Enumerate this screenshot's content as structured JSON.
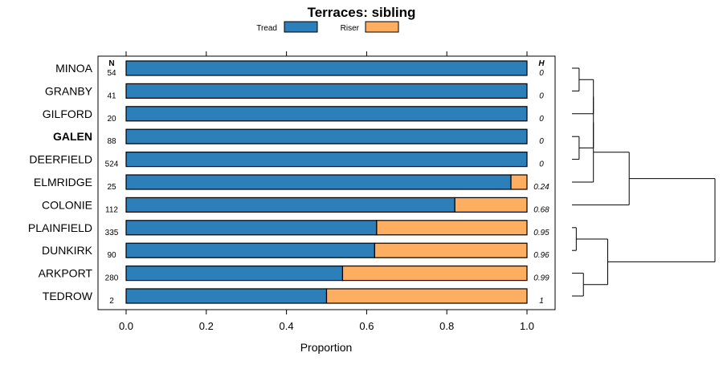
{
  "chart_data": {
    "type": "bar",
    "stacked": true,
    "orientation": "horizontal",
    "title": "Terraces: sibling",
    "xlabel": "Proportion",
    "xlim": [
      0,
      1
    ],
    "x_ticks": [
      "0.0",
      "0.2",
      "0.4",
      "0.6",
      "0.8",
      "1.0"
    ],
    "x_tick_values": [
      0,
      0.2,
      0.4,
      0.6,
      0.8,
      1.0
    ],
    "legend_placement": "top",
    "n_header": "N",
    "h_header": "H",
    "highlight": "GALEN",
    "categories": [
      "MINOA",
      "GRANBY",
      "GILFORD",
      "GALEN",
      "DEERFIELD",
      "ELMRIDGE",
      "COLONIE",
      "PLAINFIELD",
      "DUNKIRK",
      "ARKPORT",
      "TEDROW"
    ],
    "n_values": [
      "54",
      "41",
      "20",
      "88",
      "524",
      "25",
      "112",
      "335",
      "90",
      "280",
      "2"
    ],
    "h_values": [
      "0",
      "0",
      "0",
      "0",
      "0",
      "0.24",
      "0.68",
      "0.95",
      "0.96",
      "0.99",
      "1"
    ],
    "series": [
      {
        "name": "Tread",
        "color": "#2c7fb8",
        "values": [
          1.0,
          1.0,
          1.0,
          1.0,
          1.0,
          0.96,
          0.82,
          0.625,
          0.62,
          0.54,
          0.5
        ]
      },
      {
        "name": "Riser",
        "color": "#fdae61",
        "values": [
          0.0,
          0.0,
          0.0,
          0.0,
          0.0,
          0.04,
          0.18,
          0.375,
          0.38,
          0.46,
          0.5
        ]
      }
    ],
    "dendrogram": {
      "merges": [
        {
          "a": "MINOA",
          "b": "GRANBY",
          "height": 0.05
        },
        {
          "a": "GALEN",
          "b": "DEERFIELD",
          "height": 0.05
        },
        {
          "a": "MINOA+GRANBY",
          "b": "GILFORD",
          "height": 0.15
        },
        {
          "a": "MINOA+GRANBY+GILFORD",
          "b": "GALEN+DEERFIELD",
          "height": 0.15
        },
        {
          "a": "PLAINFIELD",
          "b": "DUNKIRK",
          "height": 0.03
        },
        {
          "a": "ARKPORT",
          "b": "TEDROW",
          "height": 0.08
        },
        {
          "a": "MINOA…DEERFIELD",
          "b": "ELMRIDGE",
          "height": 0.15
        },
        {
          "a": "MINOA…ELMRIDGE",
          "b": "COLONIE",
          "height": 0.4
        },
        {
          "a": "PLAINFIELD+DUNKIRK",
          "b": "ARKPORT+TEDROW",
          "height": 0.25
        },
        {
          "a": "upper cluster",
          "b": "lower cluster",
          "height": 1.0
        }
      ]
    }
  }
}
